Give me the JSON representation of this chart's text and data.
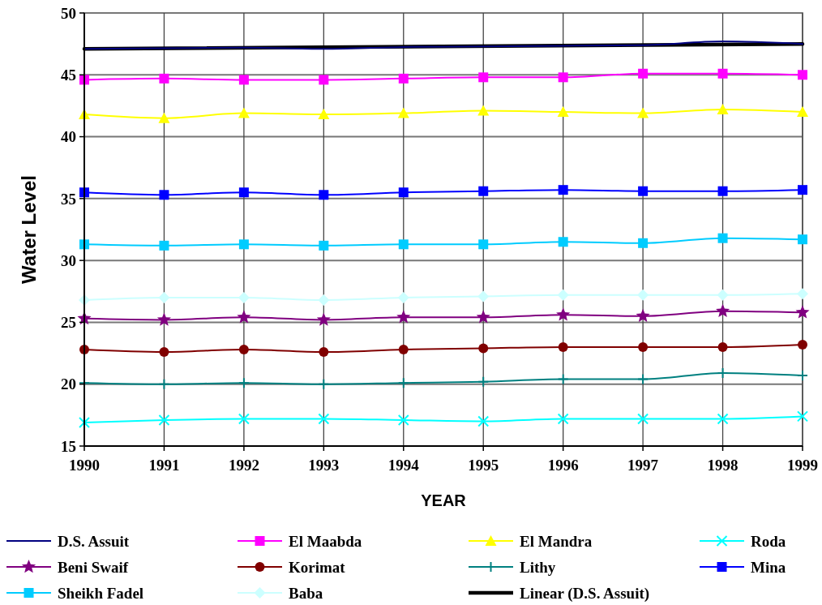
{
  "chart_data": {
    "type": "line",
    "xlabel": "YEAR",
    "ylabel": "Water Level",
    "x": [
      1990,
      1991,
      1992,
      1993,
      1994,
      1995,
      1996,
      1997,
      1998,
      1999
    ],
    "xlim": [
      1990,
      1999
    ],
    "xticks": [
      1990,
      1991,
      1992,
      1993,
      1994,
      1995,
      1996,
      1997,
      1998,
      1999
    ],
    "ylim": [
      15,
      50
    ],
    "yticks": [
      15,
      20,
      25,
      30,
      35,
      40,
      45,
      50
    ],
    "grid": true,
    "legend": "bottom",
    "line_style": "solid",
    "series": [
      {
        "name": "D.S. Assuit",
        "color": "#000080",
        "marker": "none",
        "values": [
          47.1,
          47.15,
          47.2,
          47.1,
          47.25,
          47.3,
          47.35,
          47.4,
          47.7,
          47.5
        ]
      },
      {
        "name": "El Maabda",
        "color": "#ff00ff",
        "marker": "square",
        "values": [
          44.6,
          44.7,
          44.6,
          44.6,
          44.7,
          44.8,
          44.8,
          45.1,
          45.1,
          45.0
        ]
      },
      {
        "name": "El Mandra",
        "color": "#ffff00",
        "marker": "triangle",
        "values": [
          41.8,
          41.5,
          41.9,
          41.8,
          41.9,
          42.1,
          42.0,
          41.9,
          42.2,
          42.0
        ]
      },
      {
        "name": "Roda",
        "color": "#00ffff",
        "marker": "cross",
        "values": [
          16.9,
          17.1,
          17.2,
          17.2,
          17.1,
          17.0,
          17.2,
          17.2,
          17.2,
          17.4
        ]
      },
      {
        "name": "Beni Swaif",
        "color": "#800080",
        "marker": "star",
        "values": [
          25.3,
          25.2,
          25.4,
          25.2,
          25.4,
          25.4,
          25.6,
          25.5,
          25.9,
          25.8
        ]
      },
      {
        "name": "Korimat",
        "color": "#800000",
        "marker": "circle",
        "values": [
          22.8,
          22.6,
          22.8,
          22.6,
          22.8,
          22.9,
          23.0,
          23.0,
          23.0,
          23.2
        ]
      },
      {
        "name": "Lithy",
        "color": "#008080",
        "marker": "plus",
        "values": [
          20.1,
          20.0,
          20.1,
          20.0,
          20.1,
          20.2,
          20.4,
          20.4,
          20.9,
          20.7
        ]
      },
      {
        "name": "Mina",
        "color": "#0000ff",
        "marker": "square",
        "values": [
          35.5,
          35.3,
          35.5,
          35.3,
          35.5,
          35.6,
          35.7,
          35.6,
          35.6,
          35.7
        ]
      },
      {
        "name": "Sheikh Fadel",
        "color": "#00ccff",
        "marker": "square",
        "values": [
          31.3,
          31.2,
          31.3,
          31.2,
          31.3,
          31.3,
          31.5,
          31.4,
          31.8,
          31.7
        ]
      },
      {
        "name": "Baba",
        "color": "#ccffff",
        "marker": "diamond",
        "values": [
          26.8,
          27.0,
          27.0,
          26.8,
          27.0,
          27.1,
          27.2,
          27.2,
          27.2,
          27.3
        ]
      },
      {
        "name": "Linear (D.S. Assuit)",
        "type": "line",
        "color": "#000000",
        "marker": "none",
        "x": [
          1990,
          1999
        ],
        "values": [
          47.1,
          47.5
        ]
      }
    ]
  }
}
